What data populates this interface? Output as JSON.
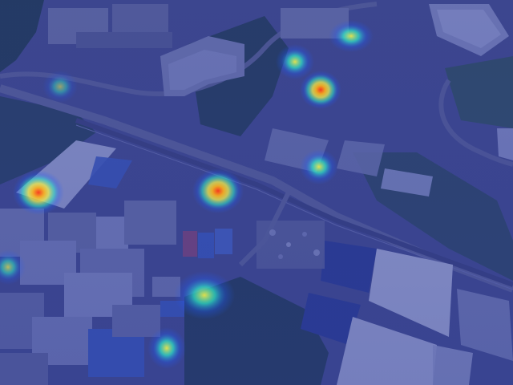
{
  "image": {
    "description_free": true,
    "overlay_colors": {
      "tint": "#2b3a9a",
      "heat_low": "#1f5cff",
      "heat_mid": "#2ee8c8",
      "heat_high": "#ffe14a",
      "heat_peak": "#ff3a1a"
    },
    "scene_colors": {
      "vegetation": "#1f3b3a",
      "roof_blue": "#3f62c6",
      "roof_white": "#c9cde6",
      "building_gray": "#7a7fa6",
      "road": "#6b6f96",
      "railway": "#4b4f78"
    }
  }
}
